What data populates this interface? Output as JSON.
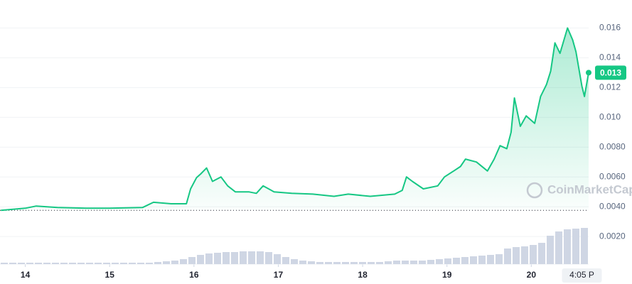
{
  "chart_data": [
    {
      "type": "line",
      "color": "#16c784",
      "watermark": "CoinMarketCap",
      "current_price": 0.013,
      "x": [
        13.71,
        14,
        14.13,
        14.38,
        14.72,
        15,
        15.39,
        15.52,
        15.73,
        15.91,
        15.96,
        16.03,
        16.08,
        16.15,
        16.22,
        16.32,
        16.4,
        16.49,
        16.65,
        16.74,
        16.82,
        16.95,
        17.16,
        17.41,
        17.66,
        17.83,
        18.09,
        18.38,
        18.47,
        18.52,
        18.59,
        18.72,
        18.89,
        18.97,
        19.08,
        19.16,
        19.22,
        19.35,
        19.48,
        19.56,
        19.63,
        19.71,
        19.76,
        19.8,
        19.87,
        19.94,
        20.04,
        20.11,
        20.18,
        20.23,
        20.28,
        20.34,
        20.43,
        20.49,
        20.53,
        20.6,
        20.63,
        20.68
      ],
      "values": [
        0.00376,
        0.0039,
        0.00405,
        0.00395,
        0.0039,
        0.0039,
        0.00395,
        0.0043,
        0.0042,
        0.0042,
        0.0052,
        0.00595,
        0.0062,
        0.0066,
        0.0057,
        0.006,
        0.0054,
        0.005,
        0.005,
        0.0049,
        0.0054,
        0.005,
        0.0049,
        0.00485,
        0.0047,
        0.00485,
        0.0047,
        0.00485,
        0.0051,
        0.006,
        0.0057,
        0.0052,
        0.0054,
        0.006,
        0.0064,
        0.0067,
        0.0072,
        0.007,
        0.0064,
        0.0072,
        0.0081,
        0.0079,
        0.009,
        0.0113,
        0.0094,
        0.0101,
        0.0096,
        0.0114,
        0.0122,
        0.0131,
        0.015,
        0.0143,
        0.016,
        0.0152,
        0.0144,
        0.0121,
        0.0114,
        0.013
      ],
      "xlim": [
        13.7,
        20.68
      ],
      "xticks": [
        14,
        15,
        16,
        17,
        18,
        19,
        20,
        {
          "value": 20.6,
          "label": "4:05 P"
        }
      ],
      "ylim": [
        0.00015,
        0.0174
      ],
      "yticks": [
        0.016,
        0.014,
        0.012,
        {
          "value": 0.01,
          "label": "0.010"
        },
        {
          "value": 0.008,
          "label": "0.0080"
        },
        {
          "value": 0.006,
          "label": "0.0060"
        },
        {
          "value": 0.004,
          "label": "0.0040"
        },
        {
          "value": 0.002,
          "label": "0.0020"
        }
      ],
      "grid": true
    },
    {
      "type": "bar",
      "color": "#cfd6e4",
      "ylim": [
        0,
        55
      ],
      "values": [
        2,
        2,
        2,
        2,
        2,
        2,
        2,
        2,
        2,
        2,
        2,
        2,
        2,
        2,
        2,
        2,
        2,
        2,
        3,
        4,
        5,
        7,
        10,
        13,
        15,
        16,
        17,
        17,
        18,
        18,
        18,
        17,
        14,
        10,
        7,
        5,
        4,
        3,
        3,
        3,
        3,
        3,
        3,
        3,
        3,
        4,
        5,
        5,
        5,
        5,
        6,
        7,
        8,
        9,
        10,
        11,
        12,
        13,
        14,
        22,
        24,
        25,
        27,
        30,
        40,
        46,
        49,
        50,
        51
      ]
    }
  ]
}
